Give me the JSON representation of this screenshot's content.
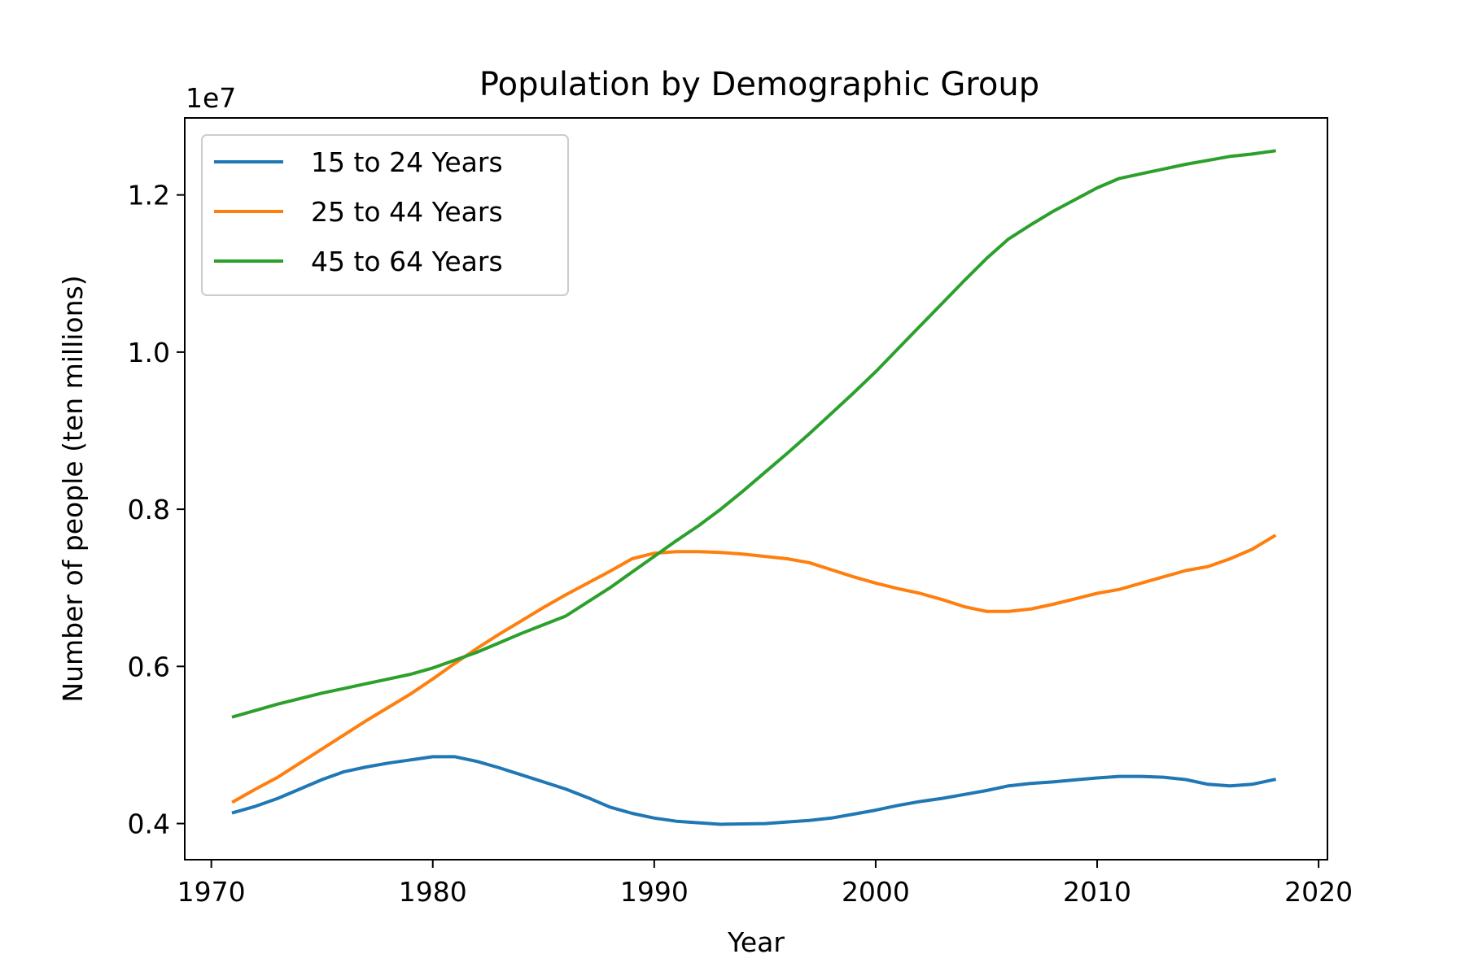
{
  "chart_data": {
    "type": "line",
    "title": "Population by Demographic Group",
    "xlabel": "Year",
    "ylabel": "Number of people (ten millions)",
    "y_offset_label": "1e7",
    "xlim": [
      1968.8,
      2020.4
    ],
    "ylim": [
      3540000,
      12980000
    ],
    "xticks": [
      1970,
      1980,
      1990,
      2000,
      2010,
      2020
    ],
    "xtick_labels": [
      "1970",
      "1980",
      "1990",
      "2000",
      "2010",
      "2020"
    ],
    "yticks": [
      4000000,
      6000000,
      8000000,
      10000000,
      12000000
    ],
    "ytick_labels": [
      "0.4",
      "0.6",
      "0.8",
      "1.0",
      "1.2"
    ],
    "grid": false,
    "legend_position": "upper-left",
    "x": [
      1971,
      1972,
      1973,
      1974,
      1975,
      1976,
      1977,
      1978,
      1979,
      1980,
      1981,
      1982,
      1983,
      1984,
      1985,
      1986,
      1987,
      1988,
      1989,
      1990,
      1991,
      1992,
      1993,
      1994,
      1995,
      1996,
      1997,
      1998,
      1999,
      2000,
      2001,
      2002,
      2003,
      2004,
      2005,
      2006,
      2007,
      2008,
      2009,
      2010,
      2011,
      2012,
      2013,
      2014,
      2015,
      2016,
      2017,
      2018
    ],
    "series": [
      {
        "name": "15 to 24 Years",
        "color": "#1f77b4",
        "values": [
          4140000,
          4220000,
          4320000,
          4440000,
          4560000,
          4660000,
          4720000,
          4770000,
          4810000,
          4850000,
          4850000,
          4790000,
          4710000,
          4620000,
          4530000,
          4440000,
          4330000,
          4210000,
          4130000,
          4070000,
          4030000,
          4010000,
          3990000,
          3995000,
          4000000,
          4020000,
          4040000,
          4070000,
          4120000,
          4170000,
          4230000,
          4280000,
          4320000,
          4370000,
          4420000,
          4480000,
          4510000,
          4530000,
          4555000,
          4580000,
          4600000,
          4600000,
          4590000,
          4560000,
          4500000,
          4480000,
          4500000,
          4560000
        ]
      },
      {
        "name": "25 to 44 Years",
        "color": "#ff7f0e",
        "values": [
          4280000,
          4440000,
          4590000,
          4770000,
          4950000,
          5130000,
          5310000,
          5480000,
          5650000,
          5840000,
          6040000,
          6230000,
          6410000,
          6580000,
          6750000,
          6910000,
          7060000,
          7210000,
          7370000,
          7440000,
          7460000,
          7460000,
          7450000,
          7430000,
          7400000,
          7370000,
          7320000,
          7230000,
          7140000,
          7060000,
          6990000,
          6930000,
          6850000,
          6760000,
          6700000,
          6700000,
          6730000,
          6790000,
          6860000,
          6930000,
          6980000,
          7060000,
          7140000,
          7220000,
          7270000,
          7370000,
          7490000,
          7660000
        ]
      },
      {
        "name": "45 to 64 Years",
        "color": "#2ca02c",
        "values": [
          5360000,
          5440000,
          5520000,
          5590000,
          5660000,
          5720000,
          5780000,
          5840000,
          5900000,
          5980000,
          6080000,
          6180000,
          6300000,
          6420000,
          6530000,
          6640000,
          6820000,
          7000000,
          7200000,
          7400000,
          7600000,
          7790000,
          8000000,
          8230000,
          8470000,
          8710000,
          8960000,
          9220000,
          9480000,
          9750000,
          10040000,
          10330000,
          10620000,
          10910000,
          11190000,
          11440000,
          11620000,
          11790000,
          11940000,
          12090000,
          12210000,
          12270000,
          12330000,
          12390000,
          12440000,
          12490000,
          12520000,
          12560000
        ]
      }
    ]
  }
}
